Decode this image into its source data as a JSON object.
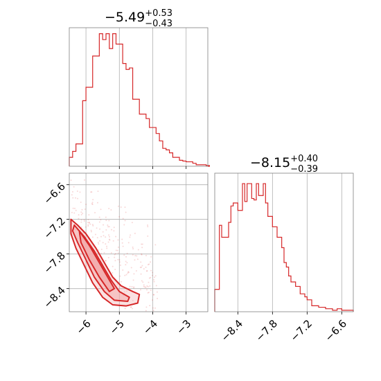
{
  "colors": {
    "hist": "#d62728",
    "contour_fill": "#f1a8a8",
    "contour_line": "#d62728",
    "grid": "#b0b0b0",
    "frame": "#808080"
  },
  "chart_data": [
    {
      "type": "histogram",
      "panel": "top-left",
      "title": {
        "main": "−5.49",
        "sup": "+0.53",
        "sub": "−0.43"
      },
      "xlim": [
        -6.5,
        -2.35
      ],
      "xticks": [
        -6,
        -5,
        -4,
        -3
      ],
      "grid": true,
      "bin_width": 0.1,
      "x_start": -6.5,
      "counts": [
        0.06,
        0.1,
        0.15,
        0.15,
        0.44,
        0.53,
        0.53,
        0.74,
        0.74,
        0.89,
        0.85,
        0.89,
        0.79,
        0.89,
        0.82,
        0.82,
        0.69,
        0.65,
        0.66,
        0.45,
        0.45,
        0.35,
        0.35,
        0.32,
        0.26,
        0.26,
        0.22,
        0.17,
        0.12,
        0.11,
        0.09,
        0.06,
        0.06,
        0.04,
        0.035,
        0.03,
        0.03,
        0.02,
        0.01,
        0.01,
        0.01,
        0.005
      ]
    },
    {
      "type": "histogram",
      "panel": "bottom-right",
      "title": {
        "main": "−8.15",
        "sup": "+0.40",
        "sub": "−0.39"
      },
      "xlim": [
        -8.8,
        -6.4
      ],
      "xticks": [
        -8.4,
        -7.8,
        -7.2,
        -6.6
      ],
      "xticklabels": [
        "−8.4",
        "−7.8",
        "−7.2",
        "−6.6"
      ],
      "grid": true,
      "bin_width": 0.04,
      "x_start": -8.8,
      "counts": [
        0.15,
        0.15,
        0.58,
        0.5,
        0.5,
        0.5,
        0.6,
        0.71,
        0.73,
        0.73,
        0.68,
        0.68,
        0.86,
        0.74,
        0.86,
        0.86,
        0.76,
        0.75,
        0.86,
        0.78,
        0.78,
        0.86,
        0.73,
        0.64,
        0.64,
        0.57,
        0.57,
        0.5,
        0.5,
        0.43,
        0.33,
        0.3,
        0.24,
        0.2,
        0.2,
        0.17,
        0.17,
        0.12,
        0.12,
        0.1,
        0.08,
        0.08,
        0.04,
        0.04,
        0.04,
        0.03,
        0.03,
        0.03,
        0.02,
        0.02,
        0.02,
        0.01,
        0.01,
        0.02,
        0.02,
        0.01,
        0.01,
        0.01,
        0.01,
        0.01
      ]
    },
    {
      "type": "contour",
      "panel": "bottom-left",
      "xlim": [
        -6.5,
        -2.35
      ],
      "ylim": [
        -8.8,
        -6.4
      ],
      "xticks": [
        -6,
        -5,
        -4,
        -3
      ],
      "xticklabels": [
        "−6",
        "−5",
        "−4",
        "−3"
      ],
      "yticks": [
        -8.4,
        -7.8,
        -7.2,
        -6.6
      ],
      "yticklabels": [
        "−8.4",
        "−7.8",
        "−7.2",
        "−6.6"
      ],
      "grid": true,
      "contours": [
        {
          "level": "outer",
          "points": [
            [
              -6.45,
              -7.2
            ],
            [
              -6.25,
              -7.3
            ],
            [
              -6.0,
              -7.45
            ],
            [
              -5.7,
              -7.7
            ],
            [
              -5.45,
              -7.95
            ],
            [
              -5.2,
              -8.2
            ],
            [
              -4.95,
              -8.35
            ],
            [
              -4.6,
              -8.45
            ],
            [
              -4.4,
              -8.5
            ],
            [
              -4.45,
              -8.65
            ],
            [
              -4.8,
              -8.7
            ],
            [
              -5.2,
              -8.68
            ],
            [
              -5.5,
              -8.55
            ],
            [
              -5.8,
              -8.3
            ],
            [
              -6.05,
              -8.0
            ],
            [
              -6.3,
              -7.7
            ],
            [
              -6.45,
              -7.45
            ]
          ]
        },
        {
          "level": "middle",
          "points": [
            [
              -6.35,
              -7.3
            ],
            [
              -6.05,
              -7.5
            ],
            [
              -5.75,
              -7.75
            ],
            [
              -5.5,
              -8.0
            ],
            [
              -5.25,
              -8.25
            ],
            [
              -5.0,
              -8.45
            ],
            [
              -4.7,
              -8.55
            ],
            [
              -4.75,
              -8.62
            ],
            [
              -5.15,
              -8.6
            ],
            [
              -5.45,
              -8.45
            ],
            [
              -5.75,
              -8.2
            ],
            [
              -6.0,
              -7.9
            ],
            [
              -6.25,
              -7.6
            ],
            [
              -6.4,
              -7.4
            ]
          ]
        },
        {
          "level": "inner",
          "points": [
            [
              -6.2,
              -7.4
            ],
            [
              -5.9,
              -7.65
            ],
            [
              -5.6,
              -7.95
            ],
            [
              -5.35,
              -8.2
            ],
            [
              -5.15,
              -8.4
            ],
            [
              -5.3,
              -8.45
            ],
            [
              -5.6,
              -8.2
            ],
            [
              -5.9,
              -7.9
            ],
            [
              -6.15,
              -7.6
            ]
          ]
        }
      ]
    }
  ]
}
